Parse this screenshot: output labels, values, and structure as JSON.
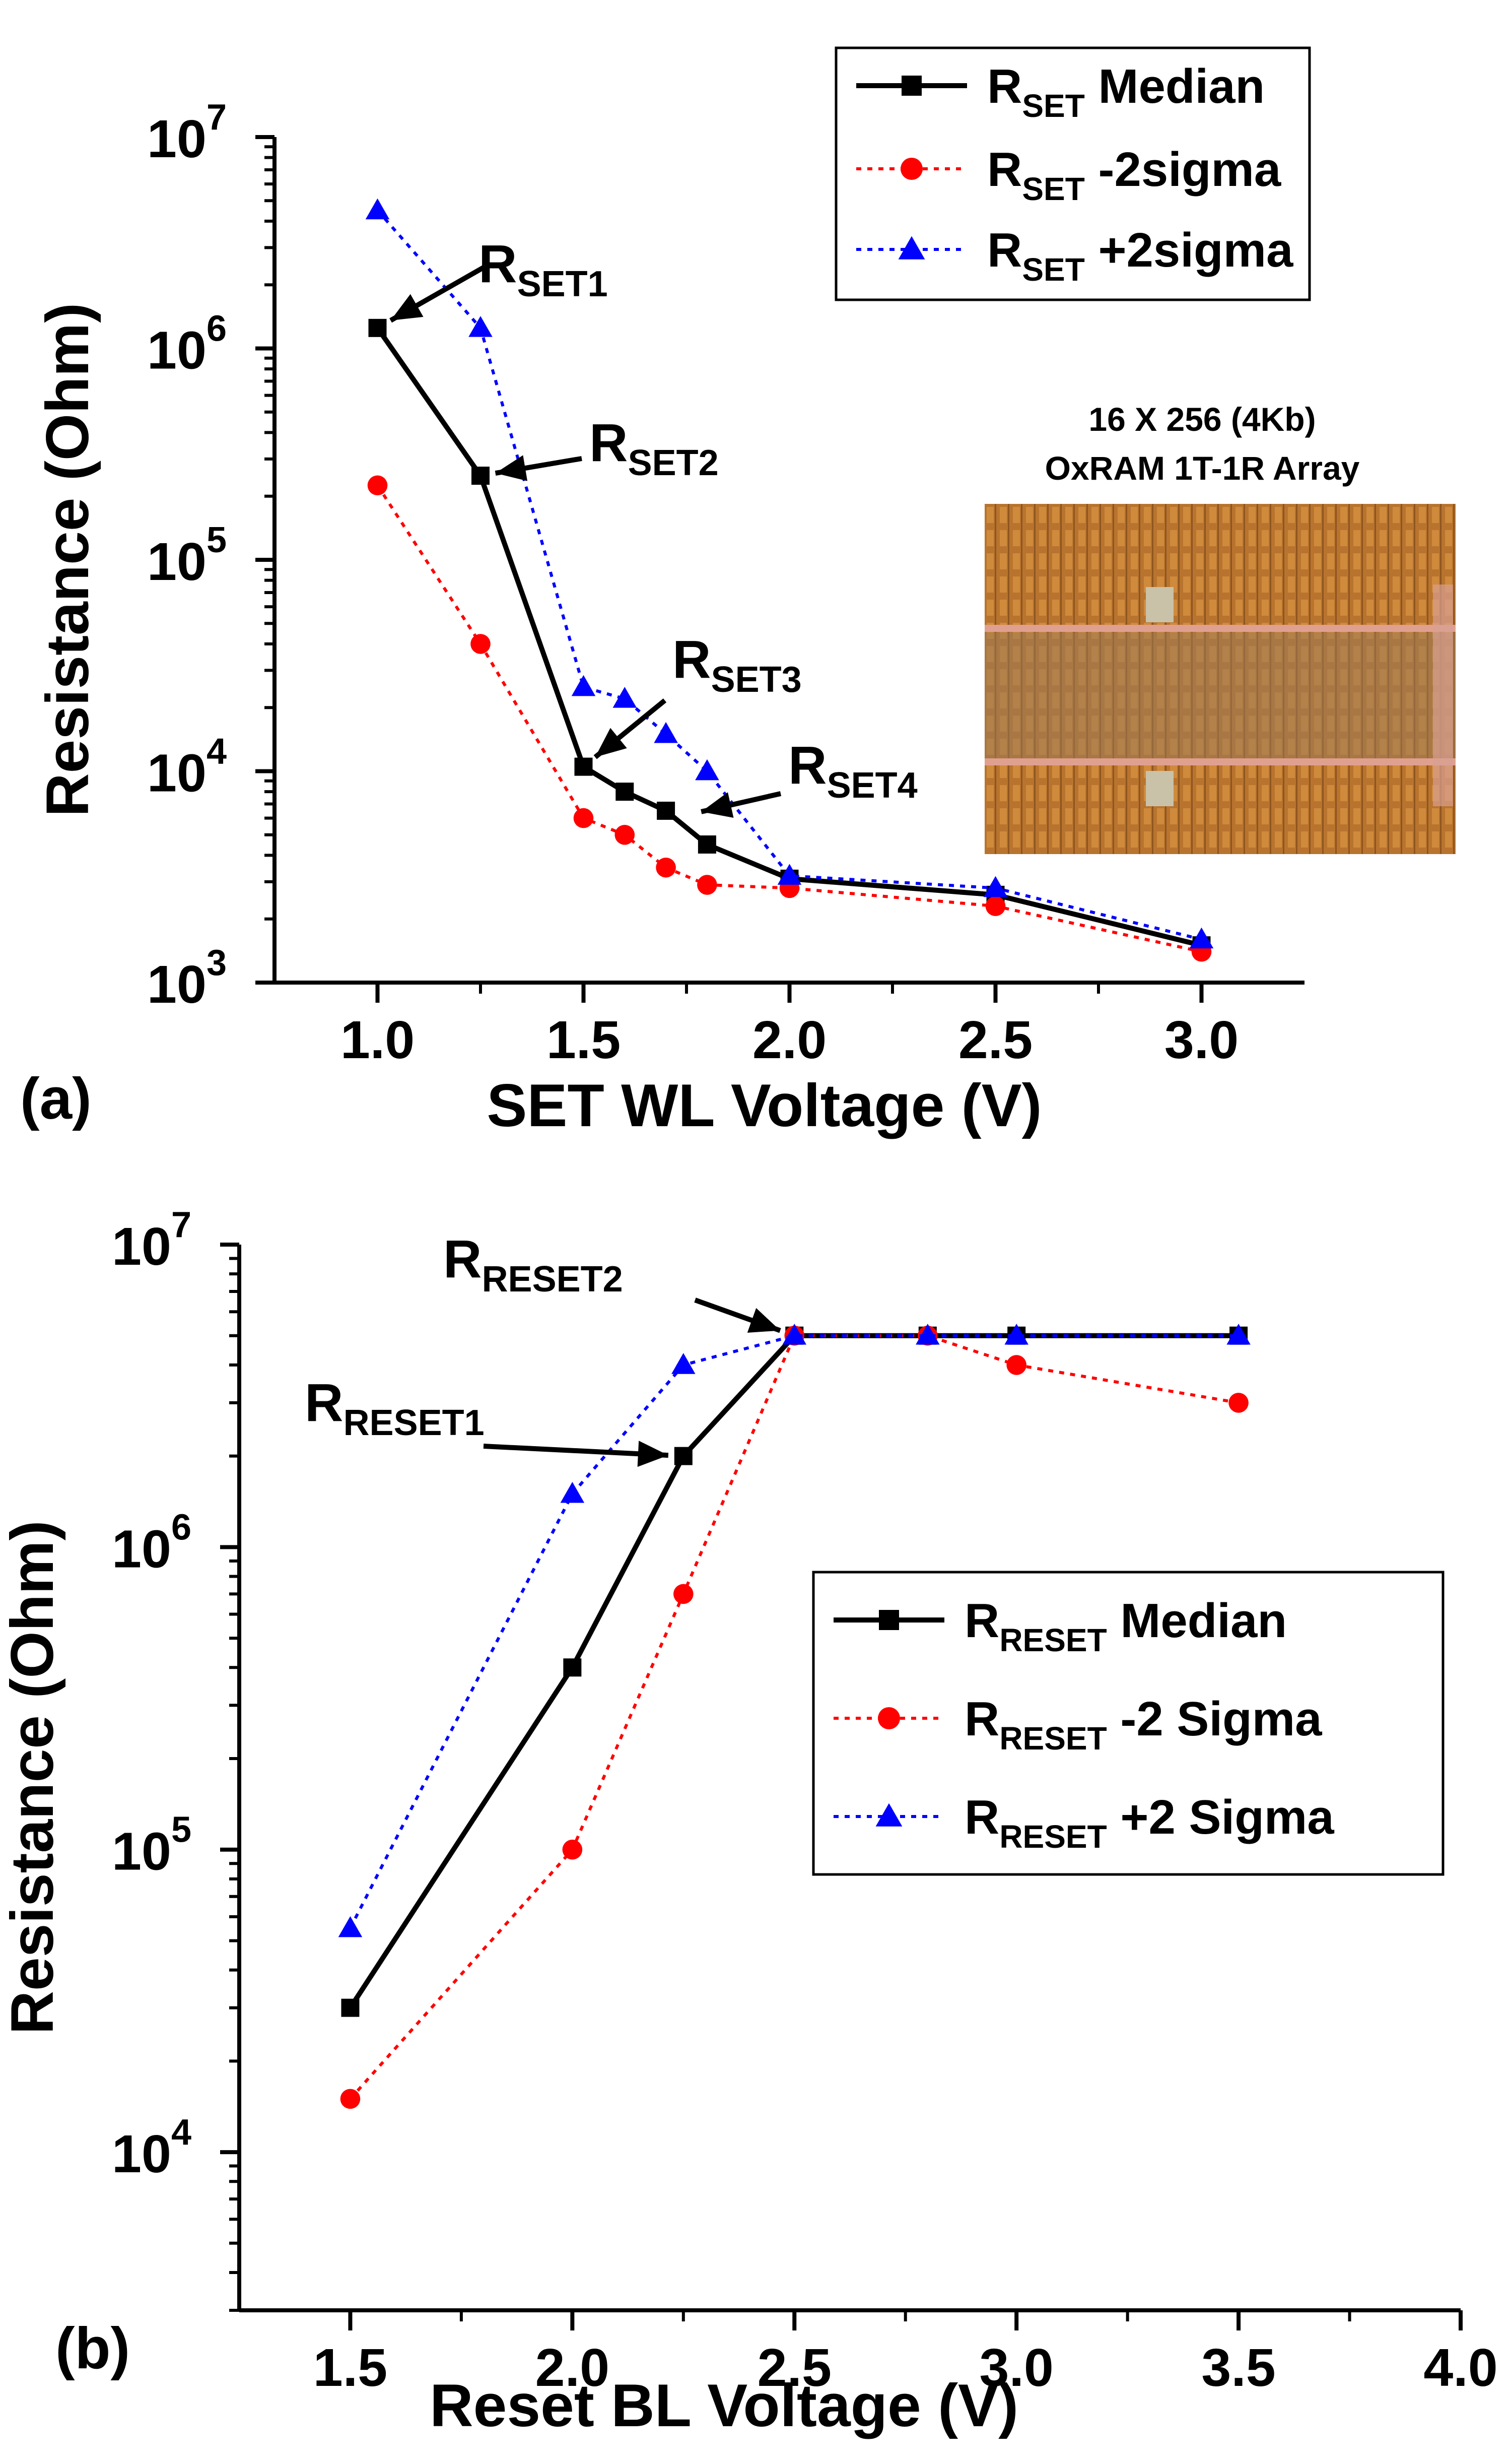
{
  "chart_data": [
    {
      "type": "line",
      "panel_label": "(a)",
      "xlabel": "SET WL Voltage (V)",
      "ylabel": "Resistance (Ohm)",
      "xlim": [
        0.75,
        3.25
      ],
      "ylim": [
        1000,
        10000000
      ],
      "yscale": "log",
      "x_ticks": [
        "1.0",
        "1.5",
        "2.0",
        "2.5",
        "3.0"
      ],
      "y_ticks": [
        {
          "base": "10",
          "exp": "3"
        },
        {
          "base": "10",
          "exp": "4"
        },
        {
          "base": "10",
          "exp": "5"
        },
        {
          "base": "10",
          "exp": "6"
        },
        {
          "base": "10",
          "exp": "7"
        }
      ],
      "legend_position": "top-right",
      "series": [
        {
          "name": {
            "main": "R",
            "sub": "SET",
            "rest": " Median"
          },
          "color": "#000000",
          "style": "solid",
          "marker": "square",
          "x": [
            1.0,
            1.25,
            1.5,
            1.6,
            1.7,
            1.8,
            2.0,
            2.5,
            3.0
          ],
          "y": [
            1250000,
            250000,
            10500,
            8000,
            6500,
            4500,
            3100,
            2600,
            1500
          ]
        },
        {
          "name": {
            "main": "R",
            "sub": "SET",
            "rest": " -2sigma"
          },
          "color": "#ff0000",
          "style": "dotted",
          "marker": "circle",
          "x": [
            1.0,
            1.25,
            1.5,
            1.6,
            1.7,
            1.8,
            2.0,
            2.5,
            3.0
          ],
          "y": [
            225000,
            40000,
            6000,
            5000,
            3500,
            2900,
            2800,
            2300,
            1400
          ]
        },
        {
          "name": {
            "main": "R",
            "sub": "SET",
            "rest": " +2sigma"
          },
          "color": "#0000ff",
          "style": "dotted",
          "marker": "triangle",
          "x": [
            1.0,
            1.25,
            1.5,
            1.6,
            1.7,
            1.8,
            2.0,
            2.5,
            3.0
          ],
          "y": [
            4500000,
            1250000,
            25000,
            22000,
            15000,
            10000,
            3200,
            2800,
            1600
          ]
        }
      ],
      "annotations": [
        {
          "main": "R",
          "sub": "SET1",
          "target_x": 1.0,
          "target_y": 1250000
        },
        {
          "main": "R",
          "sub": "SET2",
          "target_x": 1.25,
          "target_y": 250000
        },
        {
          "main": "R",
          "sub": "SET3",
          "target_x": 1.5,
          "target_y": 10500
        },
        {
          "main": "R",
          "sub": "SET4",
          "target_x": 1.75,
          "target_y": 6200
        }
      ],
      "inset": {
        "title_line1": "16 X 256 (4Kb)",
        "title_line2": "OxRAM 1T-1R Array"
      }
    },
    {
      "type": "line",
      "panel_label": "(b)",
      "xlabel": "Reset BL Voltage (V)",
      "ylabel": "Resistance (Ohm)",
      "xlim": [
        1.25,
        4.0
      ],
      "ylim": [
        3000,
        10000000
      ],
      "yscale": "log",
      "x_ticks": [
        "1.5",
        "2.0",
        "2.5",
        "3.0",
        "3.5",
        "4.0"
      ],
      "y_ticks": [
        {
          "base": "10",
          "exp": "4"
        },
        {
          "base": "10",
          "exp": "5"
        },
        {
          "base": "10",
          "exp": "6"
        },
        {
          "base": "10",
          "exp": "7"
        }
      ],
      "legend_position": "center-right",
      "series": [
        {
          "name": {
            "main": "R",
            "sub": "RESET",
            "rest": " Median"
          },
          "color": "#000000",
          "style": "solid",
          "marker": "square",
          "x": [
            1.5,
            2.0,
            2.25,
            2.5,
            2.8,
            3.0,
            3.5
          ],
          "y": [
            30000,
            400000,
            2000000,
            5000000,
            5000000,
            5000000,
            5000000
          ]
        },
        {
          "name": {
            "main": "R",
            "sub": "RESET",
            "rest": " -2 Sigma"
          },
          "color": "#ff0000",
          "style": "dotted",
          "marker": "circle",
          "x": [
            1.5,
            2.0,
            2.25,
            2.5,
            2.8,
            3.0,
            3.5
          ],
          "y": [
            15000,
            100000,
            700000,
            5000000,
            5000000,
            4000000,
            3000000
          ]
        },
        {
          "name": {
            "main": "R",
            "sub": "RESET",
            "rest": " +2 Sigma"
          },
          "color": "#0000ff",
          "style": "dotted",
          "marker": "triangle",
          "x": [
            1.5,
            2.0,
            2.25,
            2.5,
            2.8,
            3.0,
            3.5
          ],
          "y": [
            55000,
            1500000,
            4000000,
            5000000,
            5000000,
            5000000,
            5000000
          ]
        }
      ],
      "annotations": [
        {
          "main": "R",
          "sub": "RESET1",
          "target_x": 2.25,
          "target_y": 2000000
        },
        {
          "main": "R",
          "sub": "RESET2",
          "target_x": 2.5,
          "target_y": 5000000
        }
      ]
    }
  ]
}
